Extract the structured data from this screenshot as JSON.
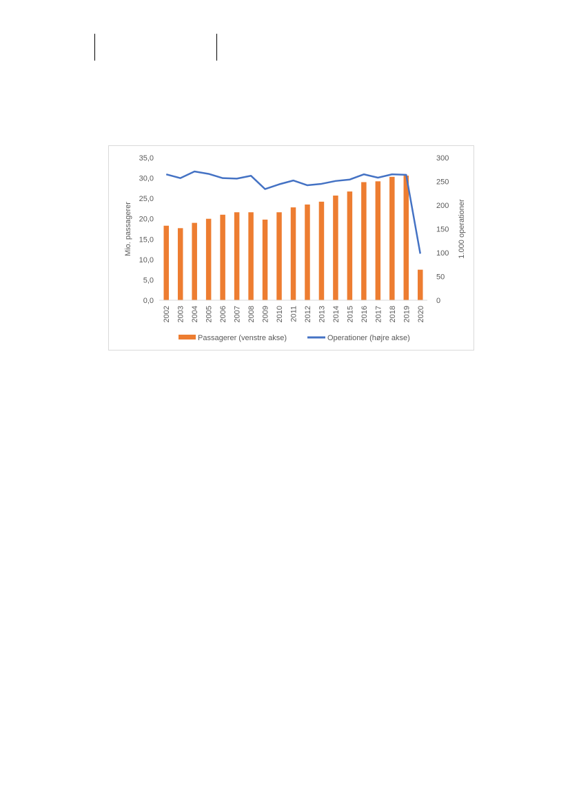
{
  "chart_data": {
    "type": "bar+line",
    "categories": [
      "2002",
      "2003",
      "2004",
      "2005",
      "2006",
      "2007",
      "2008",
      "2009",
      "2010",
      "2011",
      "2012",
      "2013",
      "2014",
      "2015",
      "2016",
      "2017",
      "2018",
      "2019",
      "2020"
    ],
    "series": [
      {
        "name": "Passagerer (venstre akse)",
        "type": "bar",
        "axis": "left",
        "color": "#ED7D31",
        "values": [
          18.3,
          17.7,
          19.0,
          20.0,
          21.0,
          21.6,
          21.6,
          19.8,
          21.6,
          22.8,
          23.5,
          24.2,
          25.7,
          26.7,
          29.0,
          29.2,
          30.3,
          30.6,
          7.5
        ]
      },
      {
        "name": "Operationer (højre akse)",
        "type": "line",
        "axis": "right",
        "color": "#4472C4",
        "values": [
          265,
          257,
          271,
          266,
          257,
          256,
          262,
          234,
          244,
          252,
          242,
          245,
          251,
          254,
          265,
          258,
          265,
          264,
          98
        ]
      }
    ],
    "ylabel": "Mio. passagerer",
    "ylabel_right": "1.000 operationer",
    "ylim": [
      0,
      35
    ],
    "ylim_right": [
      0,
      300
    ],
    "yticks": [
      "0,0",
      "5,0",
      "10,0",
      "15,0",
      "20,0",
      "25,0",
      "30,0",
      "35,0"
    ],
    "yticks_right": [
      "0",
      "50",
      "100",
      "150",
      "200",
      "250",
      "300"
    ],
    "grid": false,
    "legend": "bottom"
  }
}
